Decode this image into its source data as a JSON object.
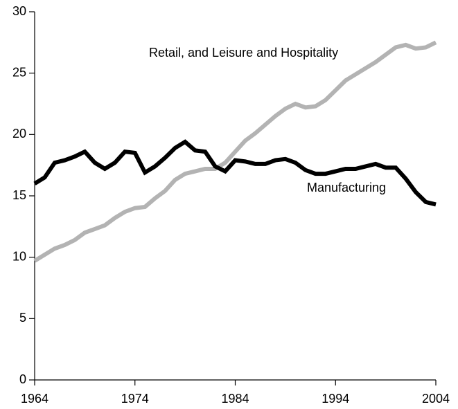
{
  "chart_data": {
    "type": "line",
    "x": [
      1964,
      1965,
      1966,
      1967,
      1968,
      1969,
      1970,
      1971,
      1972,
      1973,
      1974,
      1975,
      1976,
      1977,
      1978,
      1979,
      1980,
      1981,
      1982,
      1983,
      1984,
      1985,
      1986,
      1987,
      1988,
      1989,
      1990,
      1991,
      1992,
      1993,
      1994,
      1995,
      1996,
      1997,
      1998,
      1999,
      2000,
      2001,
      2002,
      2003,
      2004
    ],
    "series": [
      {
        "name": "Retail, and Leisure and Hospitality",
        "color": "#b3b3b3",
        "values": [
          9.7,
          10.2,
          10.7,
          11.0,
          11.4,
          12.0,
          12.3,
          12.6,
          13.2,
          13.7,
          14.0,
          14.1,
          14.8,
          15.4,
          16.3,
          16.8,
          17.0,
          17.2,
          17.2,
          17.7,
          18.6,
          19.5,
          20.1,
          20.8,
          21.5,
          22.1,
          22.5,
          22.2,
          22.3,
          22.8,
          23.6,
          24.4,
          24.9,
          25.4,
          25.9,
          26.5,
          27.1,
          27.3,
          27.0,
          27.1,
          27.5
        ]
      },
      {
        "name": "Manufacturing",
        "color": "#000000",
        "values": [
          16.0,
          16.5,
          17.7,
          17.9,
          18.2,
          18.6,
          17.7,
          17.2,
          17.7,
          18.6,
          18.5,
          16.9,
          17.4,
          18.1,
          18.9,
          19.4,
          18.7,
          18.6,
          17.4,
          17.0,
          17.9,
          17.8,
          17.6,
          17.6,
          17.9,
          18.0,
          17.7,
          17.1,
          16.8,
          16.8,
          17.0,
          17.2,
          17.2,
          17.4,
          17.6,
          17.3,
          17.3,
          16.4,
          15.3,
          14.5,
          14.3
        ]
      }
    ],
    "xlim": [
      1964,
      2004
    ],
    "xticks": [
      1964,
      1974,
      1984,
      1994,
      2004
    ],
    "ylim": [
      0,
      30
    ],
    "yticks": [
      0,
      5,
      10,
      15,
      20,
      25,
      30
    ],
    "grid": false
  }
}
